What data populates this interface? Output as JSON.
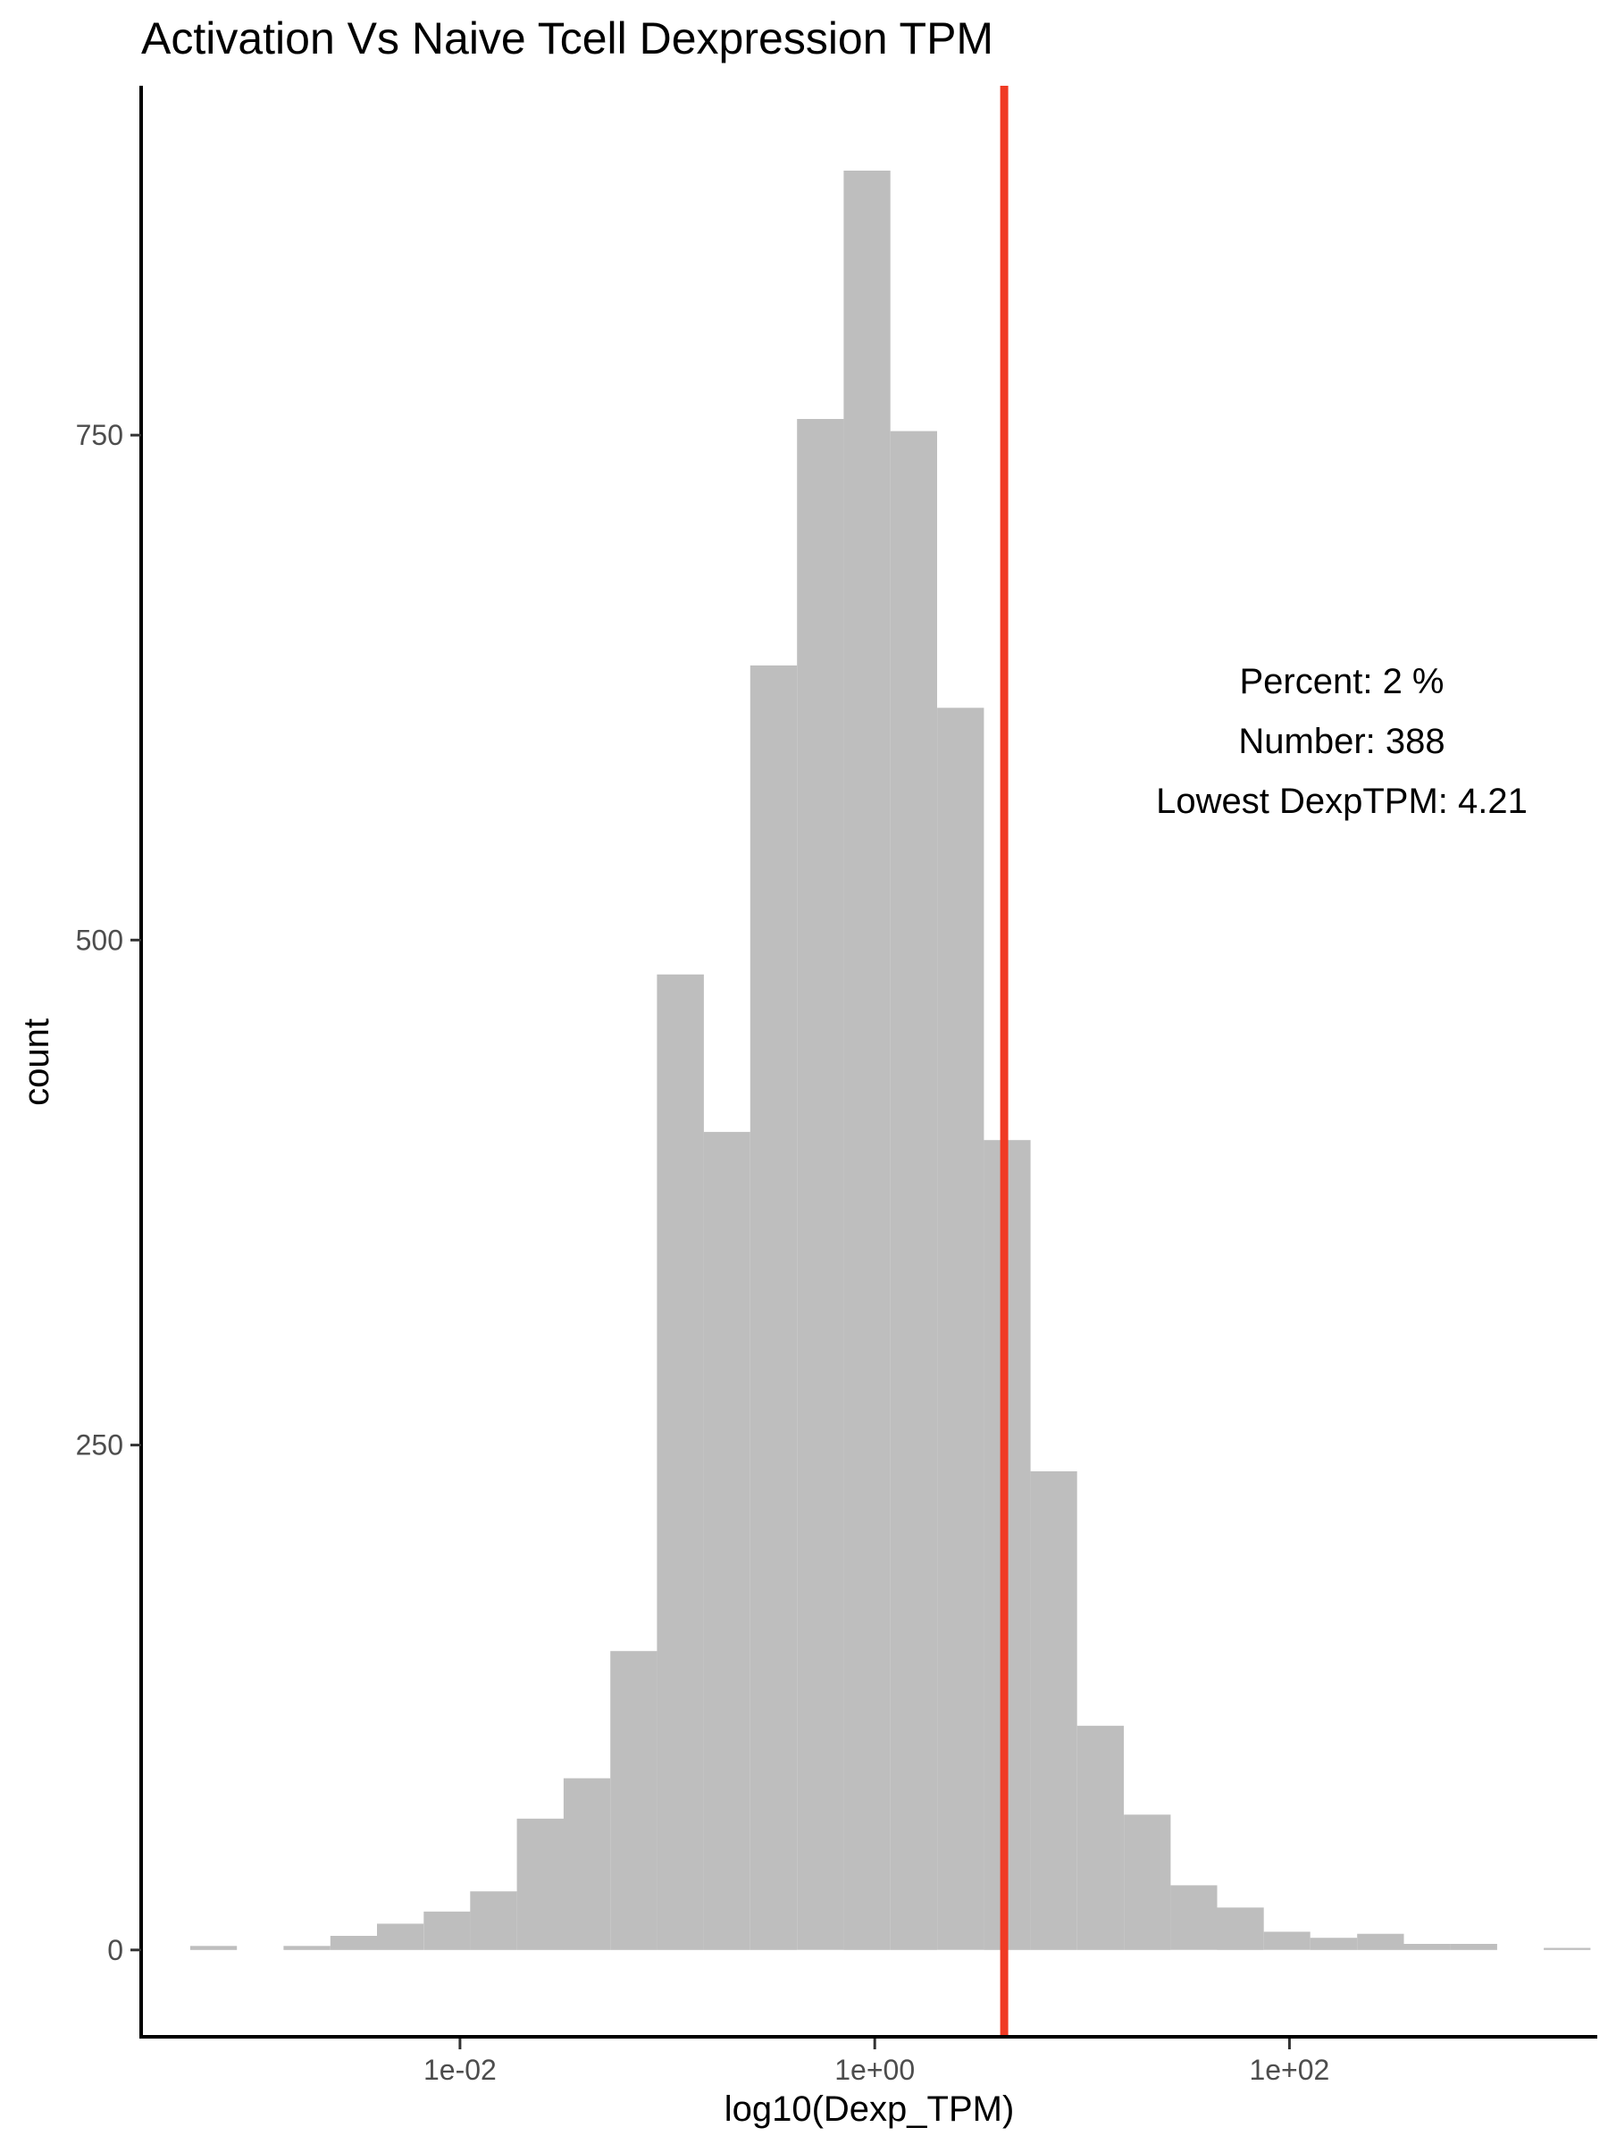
{
  "chart_data": {
    "type": "bar",
    "subtype": "histogram",
    "title": "Activation Vs Naive Tcell Dexpression TPM",
    "xlabel": "log10(Dexp_TPM)",
    "ylabel": "count",
    "x_scale": "log10",
    "bar_color": "#bebebe",
    "bins": [
      {
        "x0": 0.0005,
        "x1": 0.00084,
        "count": 2
      },
      {
        "x0": 0.00084,
        "x1": 0.00141,
        "count": 0
      },
      {
        "x0": 0.00141,
        "x1": 0.00237,
        "count": 2
      },
      {
        "x0": 0.00237,
        "x1": 0.00398,
        "count": 7
      },
      {
        "x0": 0.00398,
        "x1": 0.00668,
        "count": 13
      },
      {
        "x0": 0.00668,
        "x1": 0.0112,
        "count": 19
      },
      {
        "x0": 0.0112,
        "x1": 0.0188,
        "count": 29
      },
      {
        "x0": 0.0188,
        "x1": 0.0316,
        "count": 65
      },
      {
        "x0": 0.0316,
        "x1": 0.0531,
        "count": 85
      },
      {
        "x0": 0.0531,
        "x1": 0.0891,
        "count": 148
      },
      {
        "x0": 0.0891,
        "x1": 0.15,
        "count": 483
      },
      {
        "x0": 0.15,
        "x1": 0.251,
        "count": 405
      },
      {
        "x0": 0.251,
        "x1": 0.422,
        "count": 636
      },
      {
        "x0": 0.422,
        "x1": 0.708,
        "count": 758
      },
      {
        "x0": 0.708,
        "x1": 1.19,
        "count": 881
      },
      {
        "x0": 1.19,
        "x1": 2.0,
        "count": 752
      },
      {
        "x0": 2.0,
        "x1": 3.36,
        "count": 615
      },
      {
        "x0": 3.36,
        "x1": 5.64,
        "count": 401
      },
      {
        "x0": 5.64,
        "x1": 9.46,
        "count": 237
      },
      {
        "x0": 9.46,
        "x1": 15.9,
        "count": 111
      },
      {
        "x0": 15.9,
        "x1": 26.7,
        "count": 67
      },
      {
        "x0": 26.7,
        "x1": 44.8,
        "count": 32
      },
      {
        "x0": 44.8,
        "x1": 75.2,
        "count": 21
      },
      {
        "x0": 75.2,
        "x1": 126,
        "count": 9
      },
      {
        "x0": 126,
        "x1": 212,
        "count": 6
      },
      {
        "x0": 212,
        "x1": 356,
        "count": 8
      },
      {
        "x0": 356,
        "x1": 597,
        "count": 3
      },
      {
        "x0": 597,
        "x1": 1003,
        "count": 3
      },
      {
        "x0": 1003,
        "x1": 1684,
        "count": 0
      },
      {
        "x0": 1684,
        "x1": 2828,
        "count": 1
      }
    ],
    "xlim": [
      0.00029,
      3050
    ],
    "ylim": [
      -43,
      923
    ],
    "x_ticks": [
      {
        "value": 0.01,
        "label": "1e-02"
      },
      {
        "value": 1,
        "label": "1e+00"
      },
      {
        "value": 100,
        "label": "1e+02"
      }
    ],
    "y_ticks": [
      {
        "value": 0,
        "label": "0"
      },
      {
        "value": 250,
        "label": "250"
      },
      {
        "value": 500,
        "label": "500"
      },
      {
        "value": 750,
        "label": "750"
      }
    ],
    "vline": {
      "value": 4.21,
      "color": "#f03a24"
    },
    "annotation": {
      "lines": [
        "Percent: 2 %",
        "Number: 388",
        "Lowest DexpTPM: 4.21"
      ]
    },
    "grid": false,
    "legend": "none"
  }
}
